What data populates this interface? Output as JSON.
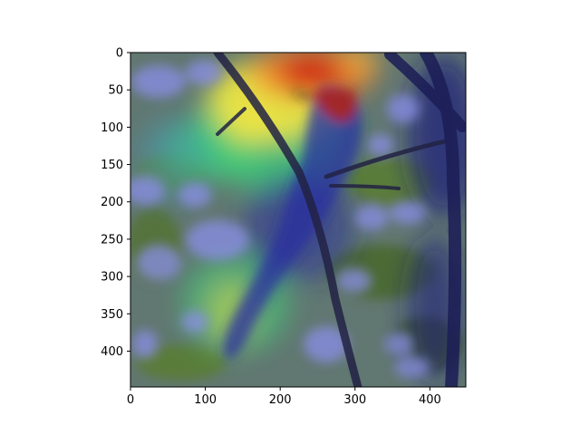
{
  "chart_data": {
    "type": "heatmap",
    "title": "",
    "xlabel": "",
    "ylabel": "",
    "xlim": [
      0,
      448
    ],
    "ylim": [
      448,
      0
    ],
    "image_extent": [
      0,
      448,
      448,
      0
    ],
    "x_ticks": [
      0,
      100,
      200,
      300,
      400
    ],
    "y_ticks": [
      0,
      50,
      100,
      150,
      200,
      250,
      300,
      350,
      400
    ],
    "grid": false,
    "colormap": "jet",
    "overlay_description": "Class activation heatmap over a photo of a bird perched on a branch",
    "hotspots": [
      {
        "x": 250,
        "y": 55,
        "intensity": 1.0
      },
      {
        "x": 270,
        "y": 100,
        "intensity": 0.85
      },
      {
        "x": 180,
        "y": 110,
        "intensity": 0.7
      },
      {
        "x": 330,
        "y": 30,
        "intensity": 0.75
      },
      {
        "x": 150,
        "y": 340,
        "intensity": 0.55
      },
      {
        "x": 95,
        "y": 150,
        "intensity": 0.4
      }
    ]
  },
  "colors": {
    "hot": "#cc1a10",
    "warm": "#f5e640",
    "mid": "#3fd07a",
    "cool": "#5a64d8",
    "cold": "#1c1f7a",
    "foliage": "#4f6e3a"
  }
}
